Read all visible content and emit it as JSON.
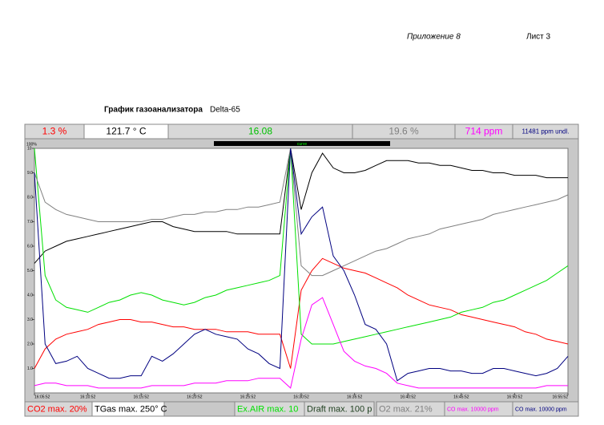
{
  "header": {
    "appendix": "Приложение 8",
    "sheet": "Лист 3",
    "caption": "График газоанализатора",
    "device": "Delta-65"
  },
  "readings": [
    {
      "text": "1.3 %",
      "color": "#ff0000"
    },
    {
      "text": "121.7 ° C",
      "color": "#000000"
    },
    {
      "text": "16.08",
      "color": "#00c000"
    },
    {
      "text": "19.6 %",
      "color": "#808080"
    },
    {
      "text": "714 ppm",
      "color": "#ff00ff"
    },
    {
      "text": "11481 ppm undl.",
      "color": "#000080"
    }
  ],
  "curve_label": "curve",
  "chart_data": {
    "type": "line",
    "ylabel": "100%",
    "x": [
      0,
      2,
      4,
      6,
      8,
      10,
      12,
      14,
      16,
      18,
      20,
      22,
      24,
      26,
      28,
      30,
      32,
      34,
      36,
      38,
      40,
      42,
      44,
      46,
      48,
      50,
      52,
      54,
      56,
      58,
      60,
      62,
      64,
      66,
      68,
      70,
      72,
      74,
      76,
      78,
      80,
      82,
      84,
      86,
      88,
      90,
      92,
      94,
      96,
      98,
      100
    ],
    "xlim": [
      0,
      100
    ],
    "xticks": [
      {
        "value": 0,
        "label": "16:05:52"
      },
      {
        "value": 10,
        "label": "16:10:52"
      },
      {
        "value": 20,
        "label": "16:15:52"
      },
      {
        "value": 30,
        "label": "16:20:52"
      },
      {
        "value": 40,
        "label": "16:25:52"
      },
      {
        "value": 50,
        "label": "16:30:52"
      },
      {
        "value": 60,
        "label": "16:35:52"
      },
      {
        "value": 70,
        "label": "16:40:52"
      },
      {
        "value": 80,
        "label": "16:45:52"
      },
      {
        "value": 90,
        "label": "16:50:52"
      },
      {
        "value": 100,
        "label": "16:55:52"
      }
    ],
    "ylim": [
      0,
      10
    ],
    "yticks": [
      {
        "value": 1,
        "label": "1.0"
      },
      {
        "value": 2,
        "label": "2.0"
      },
      {
        "value": 3,
        "label": "3.0"
      },
      {
        "value": 4,
        "label": "4.0"
      },
      {
        "value": 5,
        "label": "5.0"
      },
      {
        "value": 6,
        "label": "6.0"
      },
      {
        "value": 7,
        "label": "7.0"
      },
      {
        "value": 8,
        "label": "8.0"
      },
      {
        "value": 9,
        "label": "9.0"
      },
      10
    ],
    "series": [
      {
        "name": "CO2 max. 20%",
        "color": "#ff0000",
        "values": [
          1.0,
          1.8,
          2.2,
          2.4,
          2.5,
          2.6,
          2.8,
          2.9,
          3.0,
          3.0,
          2.9,
          2.9,
          2.8,
          2.7,
          2.7,
          2.6,
          2.6,
          2.6,
          2.5,
          2.5,
          2.5,
          2.4,
          2.4,
          2.4,
          1.0,
          4.2,
          5.0,
          5.5,
          5.3,
          5.1,
          5.0,
          4.9,
          4.7,
          4.5,
          4.3,
          4.0,
          3.8,
          3.6,
          3.5,
          3.4,
          3.2,
          3.1,
          3.0,
          2.9,
          2.8,
          2.7,
          2.5,
          2.4,
          2.2,
          2.1,
          2.0
        ]
      },
      {
        "name": "TGas max. 250° C",
        "color": "#000000",
        "values": [
          5.3,
          5.8,
          6.0,
          6.2,
          6.3,
          6.4,
          6.5,
          6.6,
          6.7,
          6.8,
          6.9,
          7.0,
          7.0,
          6.8,
          6.7,
          6.6,
          6.6,
          6.6,
          6.6,
          6.5,
          6.5,
          6.5,
          6.5,
          6.5,
          10,
          7.5,
          9.0,
          9.8,
          9.2,
          9.0,
          9.0,
          9.1,
          9.3,
          9.5,
          9.5,
          9.5,
          9.4,
          9.4,
          9.3,
          9.3,
          9.2,
          9.1,
          9.1,
          9.0,
          9.0,
          8.9,
          8.9,
          8.9,
          8.8,
          8.8,
          8.8
        ]
      },
      {
        "name": "Ex.AIR max. 10",
        "color": "#00e000",
        "values": [
          10,
          4.8,
          3.8,
          3.5,
          3.4,
          3.3,
          3.5,
          3.7,
          3.8,
          4.0,
          4.1,
          4.0,
          3.8,
          3.7,
          3.6,
          3.7,
          3.9,
          4.0,
          4.2,
          4.3,
          4.4,
          4.5,
          4.6,
          4.8,
          10,
          2.4,
          2.0,
          2.0,
          2.0,
          2.1,
          2.2,
          2.3,
          2.4,
          2.5,
          2.6,
          2.7,
          2.8,
          2.9,
          3.0,
          3.1,
          3.3,
          3.4,
          3.5,
          3.7,
          3.8,
          4.0,
          4.2,
          4.4,
          4.6,
          4.9,
          5.2
        ]
      },
      {
        "name": "Draft max. 100 p",
        "color": "#204020",
        "values": [
          null,
          null,
          null,
          null,
          null,
          null,
          null,
          null,
          null,
          null,
          null,
          null,
          null,
          null,
          null,
          null,
          null,
          null,
          null,
          null,
          null,
          null,
          null,
          null,
          null,
          null,
          null,
          null,
          null,
          null,
          null,
          null,
          null,
          null,
          null,
          null,
          null,
          null,
          null,
          null,
          null,
          null,
          null,
          null,
          null,
          null,
          null,
          null,
          null,
          null,
          null
        ]
      },
      {
        "name": "O2 max. 21%",
        "color": "#808080",
        "values": [
          9.0,
          7.8,
          7.5,
          7.3,
          7.2,
          7.1,
          7.0,
          7.0,
          7.0,
          7.0,
          7.0,
          7.1,
          7.1,
          7.2,
          7.3,
          7.3,
          7.4,
          7.4,
          7.5,
          7.5,
          7.6,
          7.6,
          7.7,
          7.8,
          10,
          5.2,
          4.8,
          4.8,
          5.0,
          5.2,
          5.4,
          5.6,
          5.8,
          5.9,
          6.1,
          6.3,
          6.4,
          6.5,
          6.7,
          6.8,
          6.9,
          7.0,
          7.1,
          7.3,
          7.4,
          7.5,
          7.6,
          7.7,
          7.8,
          7.9,
          8.1
        ]
      },
      {
        "name": "CO max. 10000 ppm",
        "color": "#ff00ff",
        "values": [
          0.3,
          0.4,
          0.4,
          0.3,
          0.3,
          0.3,
          0.2,
          0.2,
          0.2,
          0.2,
          0.2,
          0.3,
          0.3,
          0.3,
          0.3,
          0.4,
          0.4,
          0.4,
          0.5,
          0.5,
          0.5,
          0.6,
          0.6,
          0.6,
          0.2,
          2.2,
          3.6,
          3.9,
          2.8,
          1.7,
          1.3,
          1.1,
          1.0,
          0.8,
          0.4,
          0.3,
          0.2,
          0.2,
          0.2,
          0.2,
          0.2,
          0.2,
          0.2,
          0.2,
          0.2,
          0.2,
          0.2,
          0.2,
          0.3,
          0.3,
          0.3
        ]
      },
      {
        "name": "CO max. 10000 ppm",
        "color": "#000080",
        "values": [
          9.0,
          2.0,
          1.2,
          1.3,
          1.5,
          1.0,
          0.8,
          0.6,
          0.6,
          0.7,
          0.7,
          1.5,
          1.3,
          1.6,
          2.0,
          2.4,
          2.6,
          2.4,
          2.3,
          2.2,
          1.8,
          1.6,
          1.2,
          1.0,
          10,
          6.5,
          7.2,
          7.6,
          5.6,
          5.0,
          4.0,
          2.8,
          2.6,
          2.0,
          0.5,
          0.8,
          0.9,
          1.0,
          1.0,
          0.9,
          0.9,
          0.8,
          0.8,
          1.0,
          1.0,
          0.9,
          0.8,
          0.7,
          0.8,
          1.0,
          1.5
        ]
      }
    ]
  }
}
